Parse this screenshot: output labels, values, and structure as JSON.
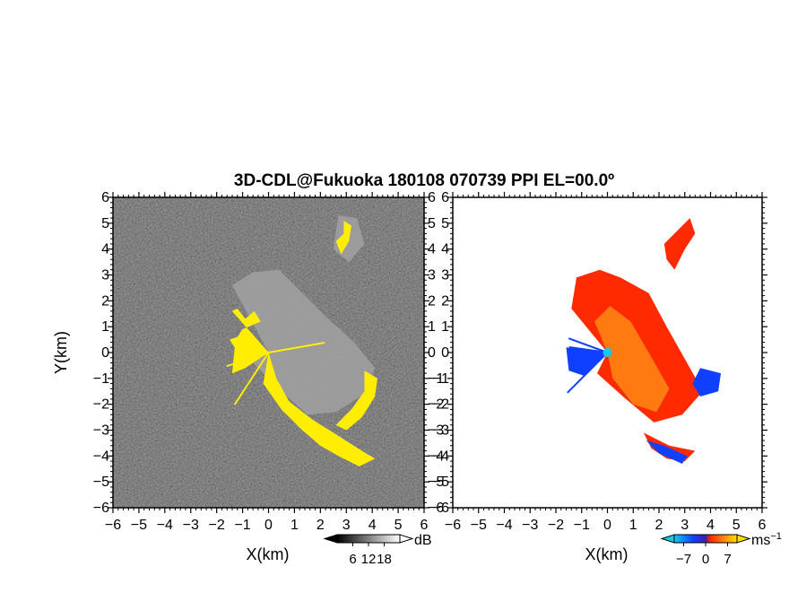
{
  "title": "3D-CDL@Fukuoka 180108 070739 PPI EL=00.0º",
  "colors": {
    "background": "#ffffff",
    "reflectivity_noise": "#2a2a2a",
    "echo_gray": "#d8d8d8",
    "highlight_yellow": "#ffee00",
    "velocity_red": "#ff2a00",
    "velocity_orange": "#ff7a10",
    "velocity_blue": "#1040ff",
    "velocity_cyan": "#18c8f0"
  },
  "chart_data": [
    {
      "name": "reflectivity-ppi",
      "type": "heatmap",
      "xlabel": "X(km)",
      "ylabel": "Y(km)",
      "xlim": [
        -6,
        6
      ],
      "ylim": [
        -6,
        6
      ],
      "xticks": [
        "−6",
        "−5",
        "−4",
        "−3",
        "−2",
        "−1",
        "0",
        "1",
        "2",
        "3",
        "4",
        "5",
        "6"
      ],
      "yticks": [
        "−6",
        "−5",
        "−4",
        "−3",
        "−2",
        "−1",
        "0",
        "1",
        "2",
        "3",
        "4",
        "5",
        "6"
      ],
      "colorbar": {
        "unit": "dB",
        "ticks": [
          "6",
          "12",
          "18"
        ],
        "tick_values": [
          6,
          12,
          18
        ],
        "range": [
          0,
          24
        ],
        "colormap": "grayscale",
        "extend": "both"
      },
      "echo_regions": [
        {
          "name": "yellow-sector-west",
          "kind": "yellow",
          "points": [
            [
              0,
              0
            ],
            [
              -1.4,
              1.6
            ],
            [
              -1.2,
              1.7
            ],
            [
              -0.9,
              1.3
            ],
            [
              -0.55,
              1.6
            ],
            [
              -0.3,
              1.2
            ],
            [
              -1.0,
              0.9
            ],
            [
              -1.2,
              0.6
            ],
            [
              -1.5,
              0.5
            ],
            [
              -1.3,
              0.2
            ],
            [
              -1.4,
              -0.8
            ],
            [
              -0.9,
              -0.6
            ],
            [
              0,
              0
            ]
          ]
        },
        {
          "name": "yellow-arc-southeast",
          "kind": "yellow",
          "points": [
            [
              0,
              0
            ],
            [
              0.3,
              -1.0
            ],
            [
              0.8,
              -1.9
            ],
            [
              1.7,
              -2.6
            ],
            [
              2.5,
              -3.1
            ],
            [
              3.6,
              -3.8
            ],
            [
              4.1,
              -4.1
            ],
            [
              3.5,
              -4.4
            ],
            [
              2.7,
              -4.0
            ],
            [
              2.0,
              -3.6
            ],
            [
              1.3,
              -3.0
            ],
            [
              0.5,
              -2.2
            ],
            [
              -0.2,
              -1.2
            ],
            [
              0,
              0
            ]
          ]
        },
        {
          "name": "yellow-east-edge",
          "kind": "yellow",
          "points": [
            [
              3.7,
              -0.7
            ],
            [
              4.2,
              -1.0
            ],
            [
              4.1,
              -1.7
            ],
            [
              3.6,
              -2.5
            ],
            [
              3.0,
              -3.0
            ],
            [
              2.6,
              -2.8
            ],
            [
              3.2,
              -2.2
            ],
            [
              3.7,
              -1.5
            ]
          ]
        },
        {
          "name": "yellow-north-clutter",
          "kind": "yellow",
          "points": [
            [
              2.9,
              5.1
            ],
            [
              3.2,
              4.9
            ],
            [
              3.1,
              4.3
            ],
            [
              2.8,
              3.8
            ],
            [
              2.6,
              4.3
            ],
            [
              2.9,
              4.6
            ]
          ]
        },
        {
          "name": "gray-echo-plume",
          "kind": "gray",
          "points": [
            [
              0,
              0
            ],
            [
              -1.4,
              2.6
            ],
            [
              -0.6,
              3.1
            ],
            [
              0.4,
              3.2
            ],
            [
              1.2,
              2.4
            ],
            [
              2.2,
              1.4
            ],
            [
              3.3,
              0.4
            ],
            [
              4.1,
              -0.6
            ],
            [
              3.7,
              -1.6
            ],
            [
              2.6,
              -2.3
            ],
            [
              1.5,
              -2.4
            ],
            [
              0.5,
              -1.5
            ],
            [
              -0.6,
              -0.4
            ]
          ]
        },
        {
          "name": "gray-echo-north",
          "kind": "gray",
          "points": [
            [
              2.7,
              5.3
            ],
            [
              3.4,
              5.2
            ],
            [
              3.7,
              4.2
            ],
            [
              3.1,
              3.5
            ],
            [
              2.5,
              4.0
            ]
          ]
        }
      ],
      "spokes": [
        {
          "angle_deg": 160,
          "length_km": 1.5,
          "kind": "yellow"
        },
        {
          "angle_deg": 198,
          "length_km": 1.7,
          "kind": "yellow"
        },
        {
          "angle_deg": 237,
          "length_km": 2.4,
          "kind": "yellow"
        },
        {
          "angle_deg": 10,
          "length_km": 2.2,
          "kind": "yellow"
        }
      ]
    },
    {
      "name": "velocity-ppi",
      "type": "heatmap",
      "xlabel": "X(km)",
      "ylabel": "",
      "xlim": [
        -6,
        6
      ],
      "ylim": [
        -6,
        6
      ],
      "xticks": [
        "−6",
        "−5",
        "−4",
        "−3",
        "−2",
        "−1",
        "0",
        "1",
        "2",
        "3",
        "4",
        "5",
        "6"
      ],
      "yticks": [
        "−6",
        "−5",
        "−4",
        "−3",
        "−2",
        "−1",
        "0",
        "1",
        "2",
        "3",
        "4",
        "5",
        "6"
      ],
      "colorbar": {
        "unit": "ms",
        "unit_exponent": "−1",
        "ticks": [
          "−7",
          "0",
          "7"
        ],
        "tick_values": [
          -7,
          0,
          7
        ],
        "range": [
          -10,
          10
        ],
        "colormap": "cyan-blue-red-orange-yellow",
        "extend": "both"
      },
      "echo_regions": [
        {
          "name": "velocity-main-plume",
          "kind": "red",
          "points": [
            [
              0,
              0
            ],
            [
              -1.4,
              1.7
            ],
            [
              -1.2,
              2.9
            ],
            [
              -0.3,
              3.2
            ],
            [
              0.5,
              2.9
            ],
            [
              1.6,
              2.3
            ],
            [
              2.3,
              1.0
            ],
            [
              3.2,
              -0.6
            ],
            [
              3.7,
              -1.5
            ],
            [
              2.9,
              -2.4
            ],
            [
              1.8,
              -2.7
            ],
            [
              0.6,
              -1.7
            ],
            [
              -0.4,
              -0.8
            ]
          ]
        },
        {
          "name": "velocity-core-orange",
          "kind": "orange",
          "points": [
            [
              0,
              0
            ],
            [
              -0.5,
              1.2
            ],
            [
              0.1,
              1.8
            ],
            [
              0.9,
              1.2
            ],
            [
              1.6,
              0.0
            ],
            [
              2.4,
              -1.4
            ],
            [
              1.9,
              -2.3
            ],
            [
              1.0,
              -2.0
            ],
            [
              0.2,
              -1.0
            ]
          ]
        },
        {
          "name": "velocity-southeast-arc",
          "kind": "red",
          "points": [
            [
              1.4,
              -3.1
            ],
            [
              2.4,
              -3.6
            ],
            [
              3.4,
              -3.8
            ],
            [
              3.0,
              -4.2
            ],
            [
              2.3,
              -4.1
            ],
            [
              1.7,
              -3.7
            ]
          ]
        },
        {
          "name": "velocity-north-cells",
          "kind": "red",
          "points": [
            [
              2.2,
              4.2
            ],
            [
              2.7,
              4.7
            ],
            [
              3.2,
              5.2
            ],
            [
              3.4,
              4.6
            ],
            [
              3.0,
              4.0
            ],
            [
              2.6,
              3.2
            ],
            [
              2.3,
              3.6
            ]
          ]
        },
        {
          "name": "velocity-blue-sector",
          "kind": "blue",
          "points": [
            [
              0,
              0
            ],
            [
              -1.6,
              0.2
            ],
            [
              -1.5,
              -0.7
            ],
            [
              -0.9,
              -0.9
            ]
          ]
        },
        {
          "name": "velocity-blue-east",
          "kind": "blue",
          "points": [
            [
              3.6,
              -0.6
            ],
            [
              4.4,
              -0.8
            ],
            [
              4.3,
              -1.5
            ],
            [
              3.6,
              -1.7
            ],
            [
              3.3,
              -1.2
            ]
          ]
        },
        {
          "name": "velocity-blue-south-trim",
          "kind": "blue",
          "points": [
            [
              1.5,
              -3.4
            ],
            [
              2.0,
              -3.9
            ],
            [
              2.9,
              -4.3
            ],
            [
              3.1,
              -4.0
            ],
            [
              2.2,
              -3.6
            ]
          ]
        }
      ],
      "spokes": [
        {
          "angle_deg": 160,
          "length_km": 1.6,
          "kind": "blue"
        },
        {
          "angle_deg": 225,
          "length_km": 2.2,
          "kind": "blue"
        },
        {
          "angle_deg": 172,
          "length_km": 1.5,
          "kind": "blue"
        }
      ],
      "radar_site": {
        "x": 0,
        "y": 0,
        "kind": "cyan"
      }
    }
  ]
}
